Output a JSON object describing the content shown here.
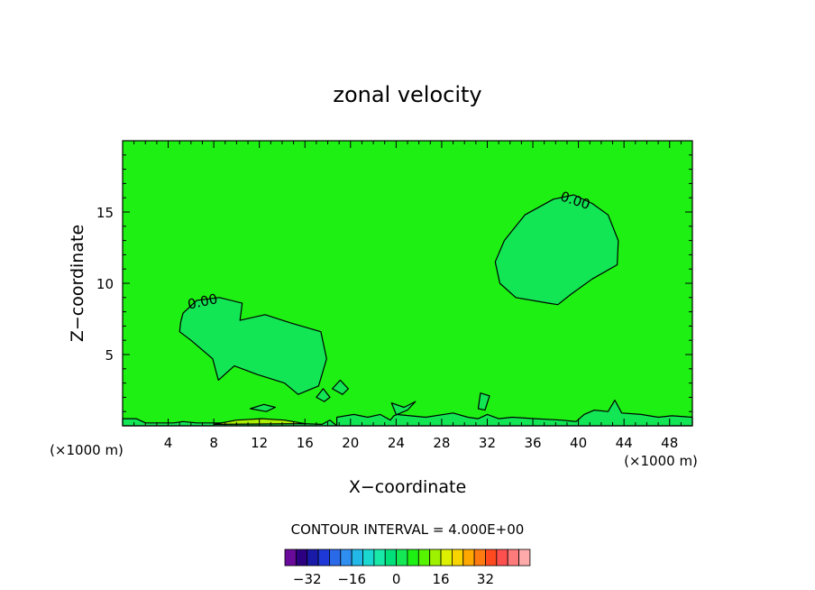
{
  "chart_data": {
    "type": "heatmap",
    "title": "zonal velocity",
    "xlabel": "X−coordinate",
    "ylabel": "Z−coordinate",
    "x_unit": "(×1000 m)",
    "x_unit_right": "(×1000 m)",
    "xlim": [
      0,
      50
    ],
    "ylim": [
      0,
      20
    ],
    "x_ticks": [
      4,
      8,
      12,
      16,
      20,
      24,
      28,
      32,
      36,
      40,
      44,
      48
    ],
    "y_ticks": [
      5,
      10,
      15
    ],
    "background_value": 2,
    "contour_interval_text": "CONTOUR INTERVAL =  4.000E+00",
    "contour_labels": [
      {
        "text": "0.00",
        "x": 7.1,
        "y": 8.4
      },
      {
        "text": "0.00",
        "x": 39.6,
        "y": 15.5
      }
    ],
    "regions": [
      {
        "value": -2,
        "label": "0.00",
        "points": [
          [
            5.3,
            7.9
          ],
          [
            6.5,
            8.8
          ],
          [
            8.5,
            9.0
          ],
          [
            10.5,
            8.6
          ],
          [
            10.3,
            7.4
          ],
          [
            12.5,
            7.8
          ],
          [
            14.8,
            7.2
          ],
          [
            17.4,
            6.6
          ],
          [
            17.9,
            4.7
          ],
          [
            17.2,
            2.8
          ],
          [
            15.4,
            2.2
          ],
          [
            14.2,
            3.0
          ],
          [
            11.8,
            3.6
          ],
          [
            9.8,
            4.2
          ],
          [
            8.4,
            3.2
          ],
          [
            7.9,
            4.7
          ],
          [
            6.0,
            6.0
          ],
          [
            5.0,
            6.6
          ],
          [
            5.1,
            7.3
          ]
        ]
      },
      {
        "value": -2,
        "label": "0.00",
        "points": [
          [
            39.6,
            16.2
          ],
          [
            41.2,
            15.6
          ],
          [
            42.6,
            14.8
          ],
          [
            43.5,
            13.0
          ],
          [
            43.4,
            11.3
          ],
          [
            41.2,
            10.3
          ],
          [
            39.3,
            9.2
          ],
          [
            38.2,
            8.5
          ],
          [
            37.4,
            8.6
          ],
          [
            34.5,
            9.0
          ],
          [
            33.1,
            10.0
          ],
          [
            32.7,
            11.5
          ],
          [
            33.5,
            13.0
          ],
          [
            35.3,
            14.8
          ],
          [
            37.8,
            15.9
          ]
        ]
      },
      {
        "value": -2,
        "points": [
          [
            0,
            0.5
          ],
          [
            1.2,
            0.5
          ],
          [
            2.0,
            0.2
          ],
          [
            4.5,
            0.2
          ],
          [
            5.3,
            0.3
          ],
          [
            6.5,
            0.2
          ],
          [
            10.0,
            0.2
          ],
          [
            14.0,
            0.2
          ],
          [
            17.5,
            0.1
          ],
          [
            18.2,
            0.4
          ],
          [
            18.8,
            0
          ],
          [
            0,
            0
          ]
        ]
      },
      {
        "value": -2,
        "points": [
          [
            18.8,
            0
          ],
          [
            18.8,
            0.6
          ],
          [
            20.3,
            0.8
          ],
          [
            21.5,
            0.6
          ],
          [
            22.6,
            0.8
          ],
          [
            23.5,
            0.4
          ],
          [
            23.8,
            0.7
          ],
          [
            25.0,
            1.1
          ],
          [
            25.7,
            1.7
          ],
          [
            24.7,
            1.3
          ],
          [
            23.6,
            1.6
          ],
          [
            24.0,
            0.8
          ],
          [
            26.6,
            0.6
          ],
          [
            29.0,
            0.9
          ],
          [
            30.3,
            0.6
          ],
          [
            31.2,
            0.5
          ],
          [
            32.0,
            0.8
          ],
          [
            33.0,
            0.5
          ],
          [
            34.2,
            0.6
          ],
          [
            36.2,
            0.5
          ],
          [
            38.5,
            0.4
          ],
          [
            39.8,
            0.3
          ],
          [
            40.5,
            0.8
          ],
          [
            41.4,
            1.1
          ],
          [
            42.6,
            1.0
          ],
          [
            43.2,
            1.8
          ],
          [
            43.8,
            0.9
          ],
          [
            45.5,
            0.8
          ],
          [
            47.0,
            0.6
          ],
          [
            48.2,
            0.7
          ],
          [
            50,
            0.6
          ],
          [
            50,
            0
          ]
        ]
      },
      {
        "value": 6,
        "points": [
          [
            8.0,
            0.1
          ],
          [
            10.0,
            0.4
          ],
          [
            12.2,
            0.5
          ],
          [
            14.2,
            0.4
          ],
          [
            16.0,
            0.15
          ],
          [
            8.0,
            0.1
          ]
        ]
      },
      {
        "value": -2,
        "points": [
          [
            11.2,
            1.2
          ],
          [
            12.4,
            1.5
          ],
          [
            13.4,
            1.3
          ],
          [
            12.6,
            1.0
          ]
        ]
      },
      {
        "value": -2,
        "points": [
          [
            17.0,
            2.0
          ],
          [
            17.6,
            2.6
          ],
          [
            18.2,
            2.0
          ],
          [
            17.7,
            1.7
          ]
        ]
      },
      {
        "value": -2,
        "points": [
          [
            18.4,
            2.6
          ],
          [
            19.1,
            3.2
          ],
          [
            19.8,
            2.6
          ],
          [
            19.3,
            2.2
          ]
        ]
      },
      {
        "value": -2,
        "points": [
          [
            31.4,
            2.3
          ],
          [
            32.2,
            2.1
          ],
          [
            31.8,
            1.1
          ],
          [
            31.2,
            1.2
          ]
        ]
      }
    ],
    "colorbar": {
      "levels": [
        -36,
        -32,
        -28,
        -24,
        -20,
        -16,
        -12,
        -8,
        -4,
        0,
        4,
        8,
        12,
        16,
        20,
        24,
        28,
        32,
        36
      ],
      "colors": [
        "#6a0a9a",
        "#2c0080",
        "#1a1aa8",
        "#1e38d8",
        "#2a6ae8",
        "#2f8ff0",
        "#22b8e8",
        "#1ad8d0",
        "#18e8a8",
        "#00e07a",
        "#14e854",
        "#1ef014",
        "#56f400",
        "#9ef200",
        "#dcf000",
        "#f8d400",
        "#ffa800",
        "#ff7a10",
        "#ff4a20",
        "#ff5050",
        "#ff7a7a",
        "#ffaaaa"
      ],
      "tick_values": [
        -32,
        -16,
        0,
        16,
        32
      ],
      "tick_labels": [
        "−32",
        "−16",
        "0",
        "16",
        "32"
      ]
    },
    "fill_colors": {
      "-2": "#12e655",
      "2": "#1ef014",
      "6": "#a8f000"
    },
    "grid": false,
    "legend": "bottom"
  }
}
